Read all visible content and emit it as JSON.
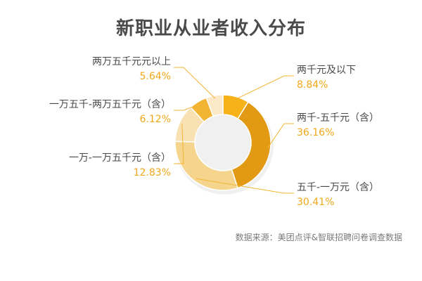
{
  "chart_data": {
    "type": "pie",
    "title": "新职业从业者收入分布",
    "slices": [
      {
        "label": "两千元及以下",
        "value": 8.84,
        "value_text": "8.84%",
        "color": "#f7b21a"
      },
      {
        "label": "两千-五千元（含）",
        "value": 36.16,
        "value_text": "36.16%",
        "color": "#e29a14"
      },
      {
        "label": "五千-一万元（含）",
        "value": 30.41,
        "value_text": "30.41%",
        "color": "#f5d58e"
      },
      {
        "label": "一万-一万五千元（含）",
        "value": 12.83,
        "value_text": "12.83%",
        "color": "#f8e2b3"
      },
      {
        "label": "一万五千-两万五千元（含）",
        "value": 6.12,
        "value_text": "6.12%",
        "color": "#f2b533"
      },
      {
        "label": "两万五千元元以上",
        "value": 5.64,
        "value_text": "5.64%",
        "color": "#fbe8c6"
      }
    ]
  },
  "source": "数据来源：美团点评&智联招聘问卷调查数据"
}
